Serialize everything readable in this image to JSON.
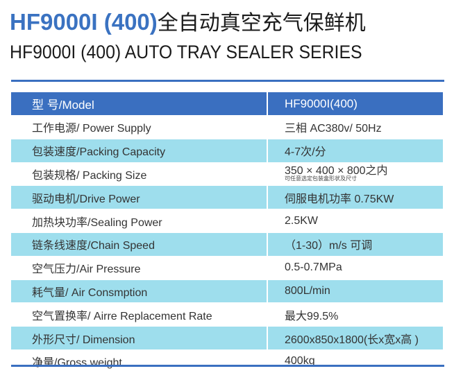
{
  "title": {
    "model": "HF9000I (400)",
    "cn": "全自动真空充气保鲜机"
  },
  "subtitle": "HF9000I (400) AUTO TRAY SEALER SERIES",
  "colors": {
    "header": "#3a6fc0",
    "alt_row": "#9edeed"
  },
  "table": {
    "header": {
      "label": "型 号/Model",
      "value": "HF9000I(400)"
    },
    "rows": [
      {
        "label": "工作电源/ Power Supply",
        "value": "三相 AC380v/ 50Hz"
      },
      {
        "label": "包装速度/Packing Capacity",
        "value": "4-7次/分"
      },
      {
        "label": "包装规格/  Packing Size",
        "value": "350 × 400 × 800之内",
        "note": "可任意选定包装盒形状及尺寸"
      },
      {
        "label": "驱动电机/Drive Power",
        "value": "伺服电机功率 0.75KW"
      },
      {
        "label": "加热块功率/Sealing  Power",
        "value": "2.5KW"
      },
      {
        "label": "链条线速度/Chain Speed",
        "value": "（1-30）m/s 可调"
      },
      {
        "label": "空气压力/Air Pressure",
        "value": "0.5-0.7MPa"
      },
      {
        "label": "耗气量/ Air Consmption",
        "value": "800L/min"
      },
      {
        "label": "空气置换率/  Airre Replacement Rate",
        "value": "最大99.5%"
      },
      {
        "label": "外形尺寸/  Dimension",
        "value": "2600x850x1800(长x宽x高 )"
      },
      {
        "label": "净量/Gross weight",
        "value": "400kg"
      }
    ]
  }
}
